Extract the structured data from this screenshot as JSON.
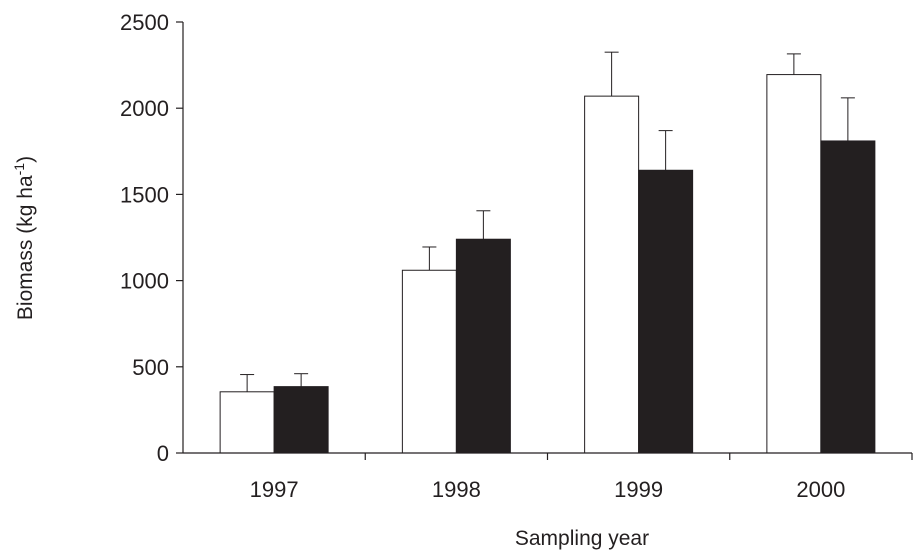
{
  "chart_data": {
    "type": "bar",
    "title": "",
    "xlabel": "Sampling year",
    "ylabel": "Biomass (kg ha⁻¹)",
    "ylabel_main": "Biomass (kg ha",
    "ylabel_sup": "-1",
    "ylabel_close": ")",
    "categories": [
      "1997",
      "1998",
      "1999",
      "2000"
    ],
    "ylim": [
      0,
      2500
    ],
    "yticks": [
      0,
      500,
      1000,
      1500,
      2000,
      2500
    ],
    "ytick_labels": [
      "0",
      "500",
      "1000",
      "1500",
      "2000",
      "2500"
    ],
    "grid": false,
    "legend": "none",
    "series": [
      {
        "fill": "#ffffff",
        "values": [
          355,
          1060,
          2070,
          2195
        ],
        "error": [
          100,
          135,
          255,
          120
        ]
      },
      {
        "fill": "#231f20",
        "values": [
          385,
          1240,
          1640,
          1810
        ],
        "error": [
          75,
          165,
          230,
          250
        ]
      }
    ]
  }
}
